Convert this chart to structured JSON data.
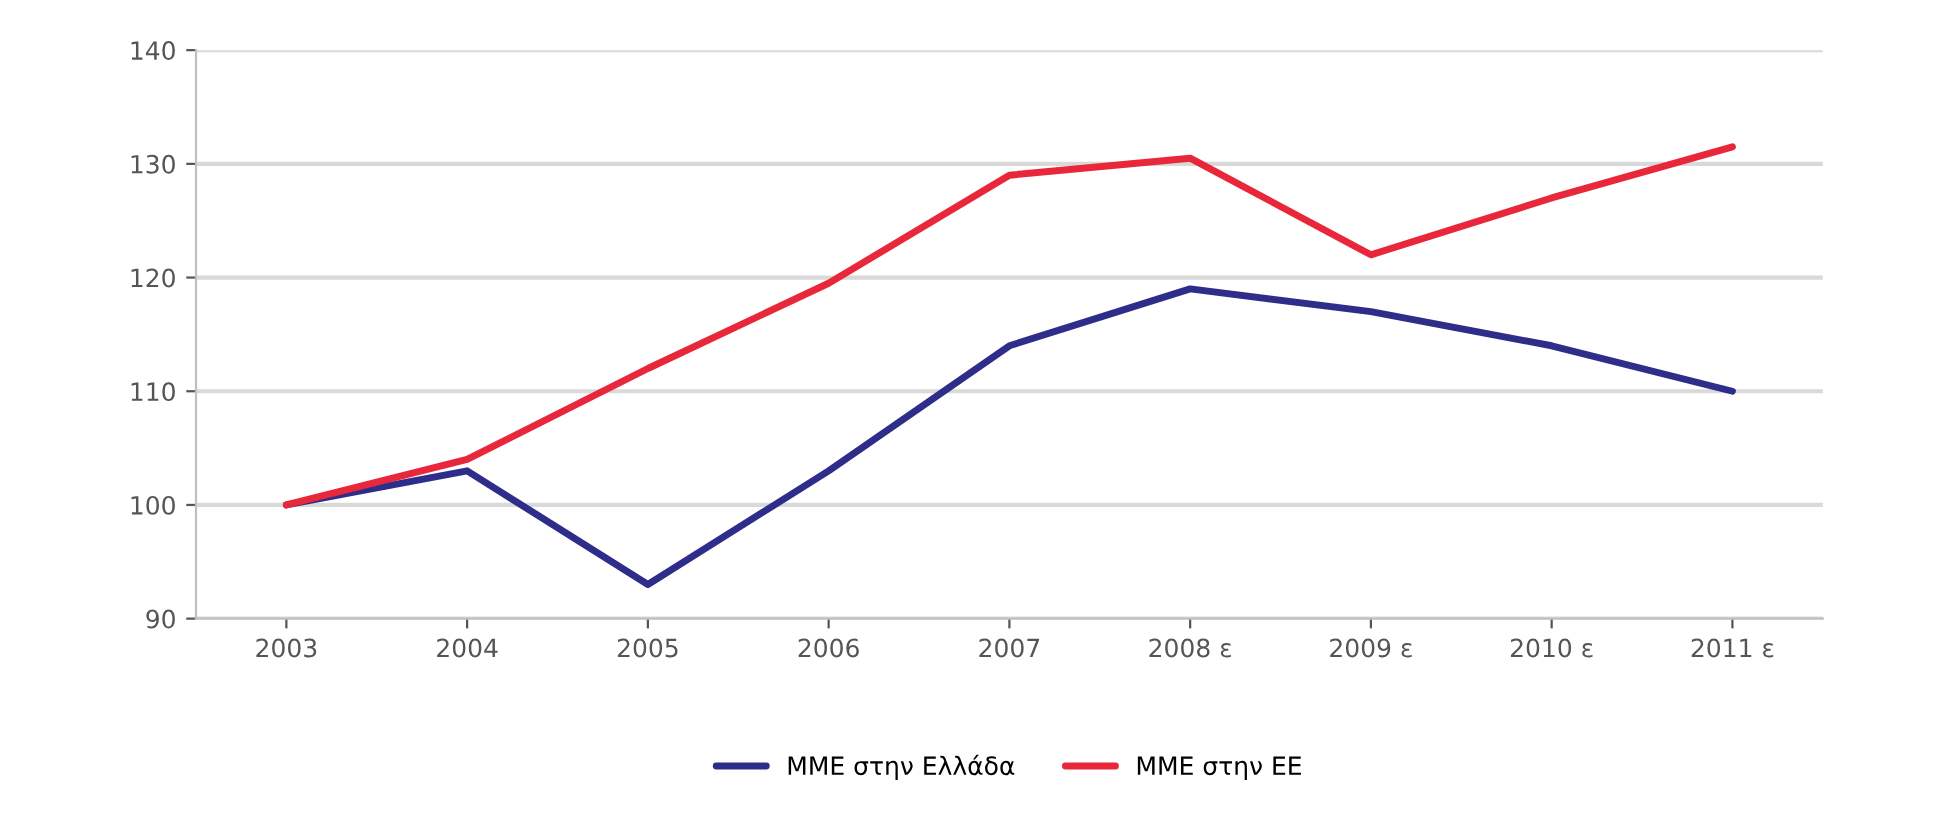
{
  "chart_data": {
    "type": "line",
    "categories": [
      "2003",
      "2004",
      "2005",
      "2006",
      "2007",
      "2008 ε",
      "2009 ε",
      "2010 ε",
      "2011 ε"
    ],
    "series": [
      {
        "name": "ΜΜΕ στην Ελλάδα",
        "color": "#2e2e8a",
        "values": [
          100,
          103,
          93,
          103,
          114,
          119,
          117,
          114,
          110
        ]
      },
      {
        "name": "ΜΜΕ στην ΕΕ",
        "color": "#e8283a",
        "values": [
          100,
          104,
          112,
          119.5,
          129,
          130.5,
          122,
          127,
          131.5
        ]
      }
    ],
    "ylim": [
      90,
      140
    ],
    "yticks": [
      90,
      100,
      110,
      120,
      130,
      140
    ],
    "grid": "y",
    "legend": "bottom",
    "marker": "none",
    "line_style": "solid"
  }
}
